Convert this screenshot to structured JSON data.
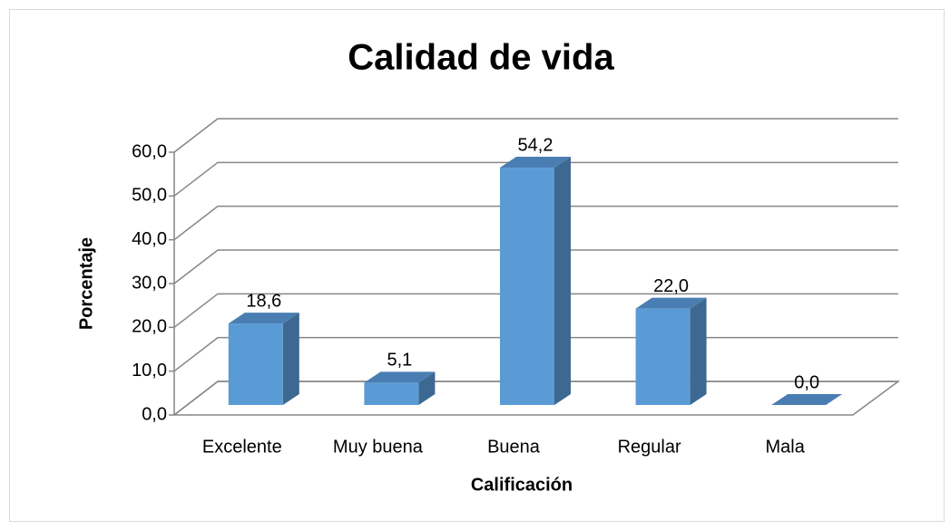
{
  "chart_data": {
    "type": "bar",
    "title": "Calidad de vida",
    "x_label": "Calificación",
    "y_label": "Porcentaje",
    "categories": [
      "Excelente",
      "Muy buena",
      "Buena",
      "Regular",
      "Mala"
    ],
    "values": [
      18.6,
      5.1,
      54.2,
      22.0,
      0.0
    ],
    "value_labels": [
      "18,6",
      "5,1",
      "54,2",
      "22,0",
      "0,0"
    ],
    "color": "#5b9bd5",
    "ylim": [
      0,
      60
    ],
    "yticks": [
      {
        "value": 0,
        "label": "0,0"
      },
      {
        "value": 10,
        "label": "10,0"
      },
      {
        "value": 20,
        "label": "20,0"
      },
      {
        "value": 30,
        "label": "30,0"
      },
      {
        "value": 40,
        "label": "40,0"
      },
      {
        "value": 50,
        "label": "50,0"
      },
      {
        "value": 60,
        "label": "60,0"
      }
    ],
    "grid": true
  }
}
